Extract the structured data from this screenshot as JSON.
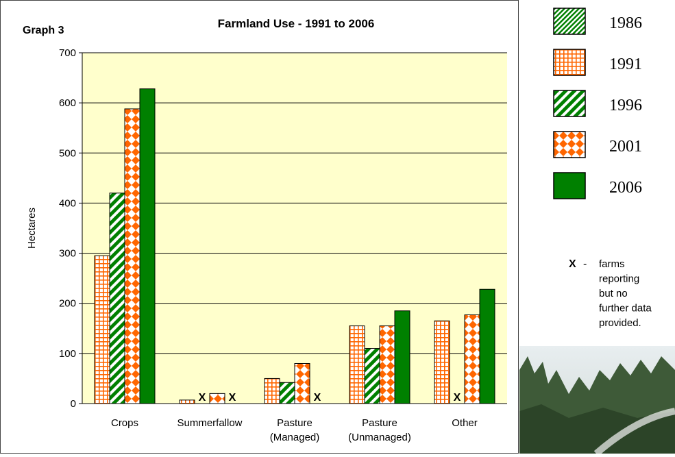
{
  "chart_data": {
    "type": "bar",
    "title": "Farmland Use - 1991 to 2006",
    "label": "Graph 3",
    "ylabel": "Hectares",
    "categories": [
      "Crops",
      "Summerfallow",
      "Pasture (Managed)",
      "Pasture (Unmanaged)",
      "Other"
    ],
    "series": [
      {
        "name": "1986",
        "color": "#008000",
        "pattern": "fine-diagonal",
        "values": [
          null,
          null,
          null,
          null,
          null
        ]
      },
      {
        "name": "1991",
        "color": "#ff6600",
        "pattern": "grid",
        "values": [
          295,
          7,
          50,
          155,
          165
        ]
      },
      {
        "name": "1996",
        "color": "#008000",
        "pattern": "diagonal",
        "values": [
          420,
          null,
          42,
          110,
          null
        ],
        "value_labels": [
          null,
          "X",
          null,
          null,
          "X"
        ]
      },
      {
        "name": "2001",
        "color": "#ff6600",
        "pattern": "diamond",
        "values": [
          588,
          20,
          80,
          155,
          177
        ]
      },
      {
        "name": "2006",
        "color": "#008000",
        "pattern": "solid",
        "values": [
          628,
          null,
          null,
          185,
          228
        ],
        "value_labels": [
          null,
          "X",
          "X",
          null,
          null
        ]
      }
    ],
    "ylim": [
      0,
      700
    ],
    "yticks": [
      0,
      100,
      200,
      300,
      400,
      500,
      600,
      700
    ],
    "grid": true,
    "plot_background": "#ffffcc",
    "legend": "right",
    "note_marker": "X",
    "note_separator": "-",
    "note_lines": [
      "farms",
      "reporting",
      "but no",
      "further data",
      "provided."
    ]
  }
}
